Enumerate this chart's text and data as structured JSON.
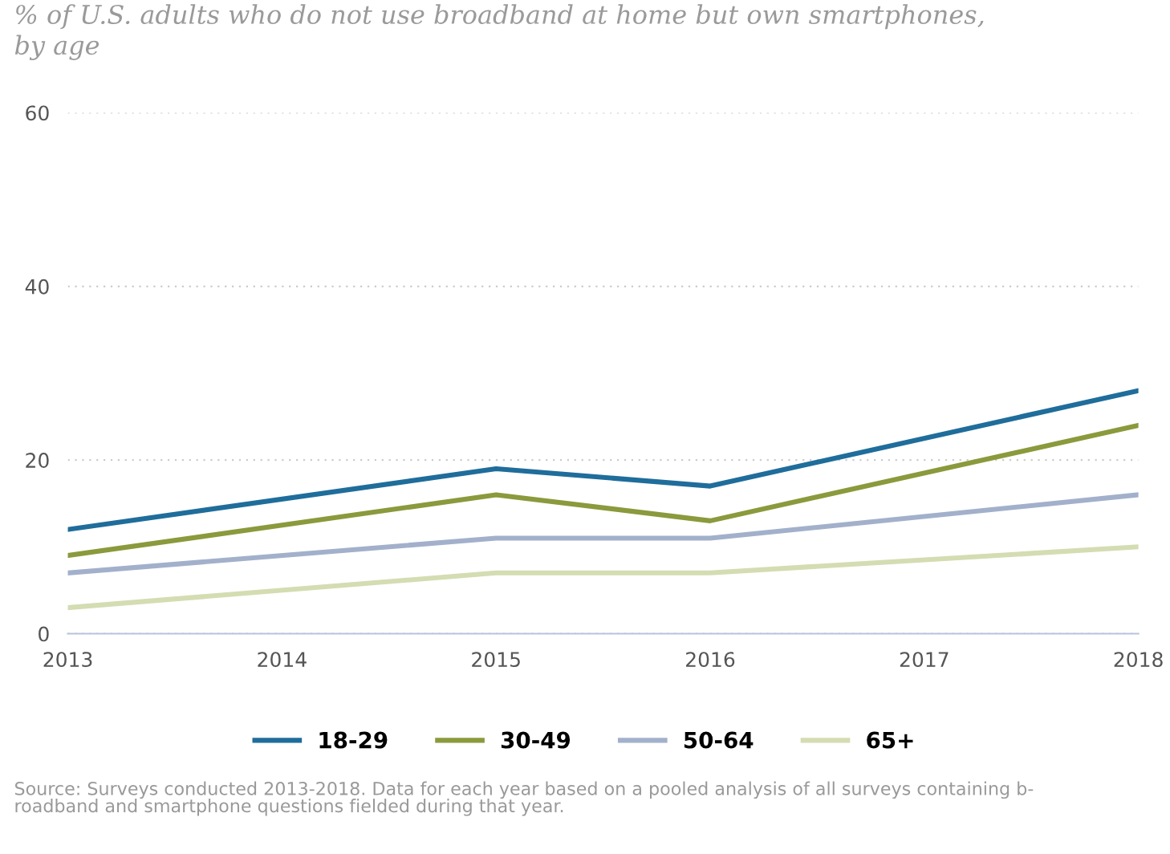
{
  "chart_data": {
    "type": "line",
    "title": "% of U.S. adults who do not use broadband at home but own smartphones,\nby age",
    "x": [
      2013,
      2015,
      2016,
      2018
    ],
    "xlim": [
      2013,
      2018
    ],
    "xticks": [
      2013,
      2014,
      2015,
      2016,
      2017,
      2018
    ],
    "ylim": [
      0,
      60
    ],
    "yticks": [
      0,
      20,
      40,
      60
    ],
    "grid": "y",
    "legend": "bottom",
    "series": [
      {
        "name": "18-29",
        "color": "#1f6d9b",
        "values": [
          12,
          19,
          17,
          28
        ]
      },
      {
        "name": "30-49",
        "color": "#8a9a3c",
        "values": [
          9,
          16,
          13,
          24
        ]
      },
      {
        "name": "50-64",
        "color": "#a2b0cb",
        "values": [
          7,
          11,
          11,
          16
        ]
      },
      {
        "name": "65+",
        "color": "#d4dcb2",
        "values": [
          3,
          7,
          7,
          10
        ]
      }
    ],
    "annotations": [
      "Source: Surveys conducted 2013-2018. Data for each year based on a pooled analysis of all surveys containing b-\nroadband and smartphone questions fielded during that year."
    ]
  }
}
